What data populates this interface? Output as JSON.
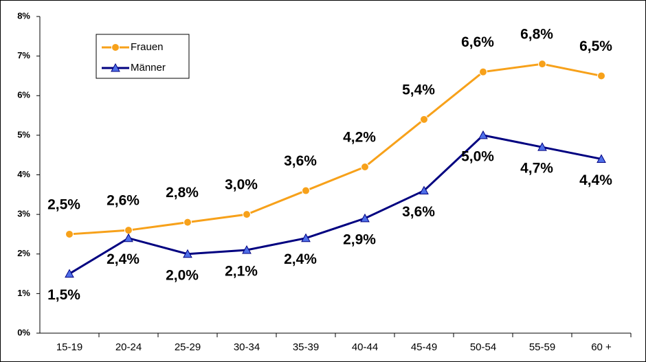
{
  "chart_data": {
    "type": "line",
    "categories": [
      "15-19",
      "20-24",
      "25-29",
      "30-34",
      "35-39",
      "40-44",
      "45-49",
      "50-54",
      "55-59",
      "60 +"
    ],
    "series": [
      {
        "name": "Frauen",
        "color": "#f7a11a",
        "marker": "circle",
        "values": [
          2.5,
          2.6,
          2.8,
          3.0,
          3.6,
          4.2,
          5.4,
          6.6,
          6.8,
          6.5
        ],
        "value_labels": [
          "2,5%",
          "2,6%",
          "2,8%",
          "3,0%",
          "3,6%",
          "4,2%",
          "5,4%",
          "6,6%",
          "6,8%",
          "6,5%"
        ]
      },
      {
        "name": "Männer",
        "color": "#000080",
        "marker": "triangle",
        "values": [
          1.5,
          2.4,
          2.0,
          2.1,
          2.4,
          2.9,
          3.6,
          5.0,
          4.7,
          4.4
        ],
        "value_labels": [
          "1,5%",
          "2,4%",
          "2,0%",
          "2,1%",
          "2,4%",
          "2,9%",
          "3,6%",
          "5,0%",
          "4,7%",
          "4,4%"
        ]
      }
    ],
    "ylim": [
      0,
      8
    ],
    "yticks": [
      {
        "value": 0,
        "label": "0%"
      },
      {
        "value": 1,
        "label": "1%"
      },
      {
        "value": 2,
        "label": "2%"
      },
      {
        "value": 3,
        "label": "3%"
      },
      {
        "value": 4,
        "label": "4%"
      },
      {
        "value": 5,
        "label": "5%"
      },
      {
        "value": 6,
        "label": "6%"
      },
      {
        "value": 7,
        "label": "7%"
      },
      {
        "value": 8,
        "label": "8%"
      }
    ],
    "grid": false,
    "legend": "upper left"
  }
}
